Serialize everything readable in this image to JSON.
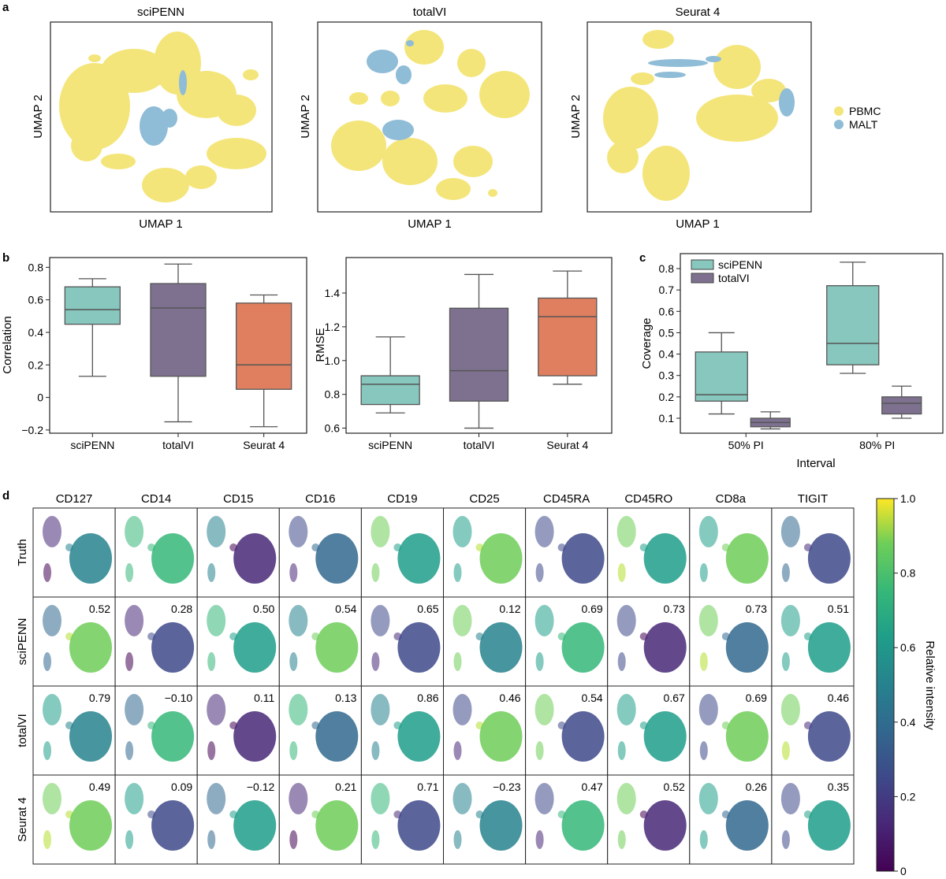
{
  "panel_letters": [
    "a",
    "b",
    "c",
    "d"
  ],
  "chart_data": [
    {
      "type": "scatter",
      "panel": "a",
      "titles": [
        "sciPENN",
        "totalVI",
        "Seurat 4"
      ],
      "xlabel": "UMAP 1",
      "ylabel": "UMAP 2",
      "legend": [
        {
          "name": "PBMC",
          "color": "#f4e57a"
        },
        {
          "name": "MALT",
          "color": "#8fbcd6"
        }
      ]
    },
    {
      "type": "box",
      "panel": "b",
      "ylabel": "Correlation",
      "categories": [
        "sciPENN",
        "totalVI",
        "Seurat 4"
      ],
      "ylim": [
        -0.22,
        0.86
      ],
      "yticks": [
        -0.2,
        0,
        0.2,
        0.4,
        0.6,
        0.8
      ],
      "ytick_labels": [
        "−0.2",
        "0",
        "0.2",
        "0.4",
        "0.6",
        "0.8"
      ],
      "boxes": [
        {
          "min": 0.13,
          "q1": 0.45,
          "median": 0.54,
          "q3": 0.68,
          "max": 0.73,
          "color": "#87c7bd"
        },
        {
          "min": -0.15,
          "q1": 0.13,
          "median": 0.55,
          "q3": 0.7,
          "max": 0.82,
          "color": "#7e7190"
        },
        {
          "min": -0.18,
          "q1": 0.05,
          "median": 0.2,
          "q3": 0.58,
          "max": 0.63,
          "color": "#e07f5f"
        }
      ]
    },
    {
      "type": "box",
      "panel": "b",
      "ylabel": "RMSE",
      "categories": [
        "sciPENN",
        "totalVI",
        "Seurat 4"
      ],
      "ylim": [
        0.57,
        1.61
      ],
      "yticks": [
        0.6,
        0.8,
        1.0,
        1.2,
        1.4
      ],
      "ytick_labels": [
        "0.6",
        "0.8",
        "1.0",
        "1.2",
        "1.4"
      ],
      "boxes": [
        {
          "min": 0.69,
          "q1": 0.74,
          "median": 0.86,
          "q3": 0.91,
          "max": 1.14,
          "color": "#87c7bd"
        },
        {
          "min": 0.6,
          "q1": 0.76,
          "median": 0.94,
          "q3": 1.31,
          "max": 1.51,
          "color": "#7e7190"
        },
        {
          "min": 0.86,
          "q1": 0.91,
          "median": 1.26,
          "q3": 1.37,
          "max": 1.53,
          "color": "#e07f5f"
        }
      ]
    },
    {
      "type": "box",
      "panel": "c",
      "xlabel": "Interval",
      "ylabel": "Coverage",
      "categories": [
        "50% PI",
        "80% PI"
      ],
      "ylim": [
        0.03,
        0.87
      ],
      "yticks": [
        0.1,
        0.2,
        0.3,
        0.4,
        0.5,
        0.6,
        0.7,
        0.8
      ],
      "ytick_labels": [
        "0.1",
        "0.2",
        "0.3",
        "0.4",
        "0.5",
        "0.6",
        "0.7",
        "0.8"
      ],
      "legend": [
        "sciPENN",
        "totalVI"
      ],
      "legend_placement": "top-left",
      "series": [
        {
          "name": "sciPENN",
          "color": "#87c7bd",
          "boxes": [
            {
              "min": 0.12,
              "q1": 0.18,
              "median": 0.21,
              "q3": 0.41,
              "max": 0.5
            },
            {
              "min": 0.31,
              "q1": 0.35,
              "median": 0.45,
              "q3": 0.72,
              "max": 0.83
            }
          ]
        },
        {
          "name": "totalVI",
          "color": "#7e7190",
          "boxes": [
            {
              "min": 0.05,
              "q1": 0.06,
              "median": 0.08,
              "q3": 0.1,
              "max": 0.13
            },
            {
              "min": 0.1,
              "q1": 0.12,
              "median": 0.17,
              "q3": 0.2,
              "max": 0.25
            }
          ]
        }
      ]
    },
    {
      "type": "heatmap",
      "panel": "d",
      "columns": [
        "CD127",
        "CD14",
        "CD15",
        "CD16",
        "CD19",
        "CD25",
        "CD45RA",
        "CD45RO",
        "CD8a",
        "TIGIT"
      ],
      "rows": [
        "Truth",
        "sciPENN",
        "totalVI",
        "Seurat 4"
      ],
      "correlations": {
        "sciPENN": [
          "0.52",
          "0.28",
          "0.50",
          "0.54",
          "0.65",
          "0.12",
          "0.69",
          "0.73",
          "0.73",
          "0.51"
        ],
        "totalVI": [
          "0.79",
          "−0.10",
          "0.11",
          "0.13",
          "0.86",
          "0.46",
          "0.54",
          "0.67",
          "0.69",
          "0.46"
        ],
        "Seurat 4": [
          "0.49",
          "0.09",
          "−0.12",
          "0.21",
          "0.71",
          "−0.23",
          "0.47",
          "0.52",
          "0.26",
          "0.35"
        ]
      },
      "colorbar": {
        "label": "Relative intensity",
        "ticks": [
          "0",
          "0.2",
          "0.4",
          "0.6",
          "0.8",
          "1.0"
        ],
        "range": [
          0,
          1
        ],
        "colormap": "viridis"
      }
    }
  ]
}
